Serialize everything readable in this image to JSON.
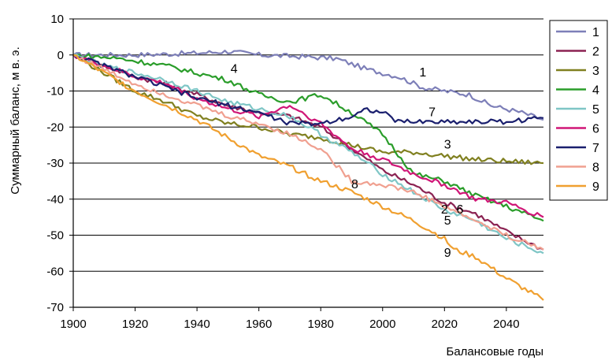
{
  "chart_data": {
    "type": "line",
    "title": "",
    "xlabel": "Балансовые годы",
    "ylabel": "Суммарный баланс,  м в. э.",
    "xlim": [
      1900,
      2052
    ],
    "ylim": [
      -70,
      10
    ],
    "x_ticks": [
      "1900",
      "1920",
      "1940",
      "1960",
      "1980",
      "2000",
      "2020",
      "2040"
    ],
    "y_ticks": [
      "10",
      "0",
      "-10",
      "-20",
      "-30",
      "-40",
      "-50",
      "-60",
      "-70"
    ],
    "grid": "horizontal",
    "legend_position": "right",
    "series": [
      {
        "name": "1",
        "color": "#7d7fb8",
        "points": [
          [
            1900,
            0
          ],
          [
            1920,
            0
          ],
          [
            1940,
            0.5
          ],
          [
            1950,
            1
          ],
          [
            1960,
            0
          ],
          [
            1975,
            -0.5
          ],
          [
            1985,
            -1
          ],
          [
            1995,
            -4
          ],
          [
            2005,
            -6
          ],
          [
            2013,
            -9
          ],
          [
            2020,
            -10
          ],
          [
            2028,
            -11
          ],
          [
            2035,
            -14
          ],
          [
            2045,
            -16
          ],
          [
            2052,
            -18
          ]
        ]
      },
      {
        "name": "2",
        "color": "#8b2252",
        "points": [
          [
            1900,
            0
          ],
          [
            1910,
            -3
          ],
          [
            1920,
            -6
          ],
          [
            1930,
            -8
          ],
          [
            1940,
            -11
          ],
          [
            1950,
            -14
          ],
          [
            1960,
            -16
          ],
          [
            1970,
            -17
          ],
          [
            1980,
            -20
          ],
          [
            1990,
            -26
          ],
          [
            2000,
            -32
          ],
          [
            2010,
            -36
          ],
          [
            2020,
            -41
          ],
          [
            2030,
            -44
          ],
          [
            2040,
            -49
          ],
          [
            2052,
            -54
          ]
        ]
      },
      {
        "name": "3",
        "color": "#808020",
        "points": [
          [
            1900,
            0
          ],
          [
            1910,
            -5
          ],
          [
            1920,
            -10
          ],
          [
            1930,
            -13
          ],
          [
            1940,
            -17
          ],
          [
            1950,
            -19
          ],
          [
            1960,
            -20
          ],
          [
            1970,
            -22
          ],
          [
            1980,
            -23
          ],
          [
            1990,
            -25
          ],
          [
            2000,
            -27
          ],
          [
            2010,
            -27
          ],
          [
            2020,
            -28
          ],
          [
            2030,
            -29
          ],
          [
            2040,
            -29.5
          ],
          [
            2052,
            -30
          ]
        ]
      },
      {
        "name": "4",
        "color": "#2a9d2a",
        "points": [
          [
            1900,
            0
          ],
          [
            1915,
            -1
          ],
          [
            1930,
            -3
          ],
          [
            1940,
            -5
          ],
          [
            1950,
            -7
          ],
          [
            1960,
            -11
          ],
          [
            1970,
            -13
          ],
          [
            1980,
            -11
          ],
          [
            1990,
            -16
          ],
          [
            2000,
            -22
          ],
          [
            2010,
            -33
          ],
          [
            2020,
            -35
          ],
          [
            2030,
            -39
          ],
          [
            2040,
            -42
          ],
          [
            2052,
            -46
          ]
        ]
      },
      {
        "name": "5",
        "color": "#7fc6c6",
        "points": [
          [
            1900,
            0
          ],
          [
            1910,
            -3
          ],
          [
            1920,
            -5
          ],
          [
            1930,
            -7
          ],
          [
            1940,
            -10
          ],
          [
            1950,
            -13
          ],
          [
            1960,
            -15
          ],
          [
            1970,
            -17
          ],
          [
            1980,
            -22
          ],
          [
            1990,
            -27
          ],
          [
            2000,
            -33
          ],
          [
            2010,
            -38
          ],
          [
            2020,
            -43
          ],
          [
            2030,
            -46
          ],
          [
            2040,
            -51
          ],
          [
            2052,
            -55
          ]
        ]
      },
      {
        "name": "6",
        "color": "#d01677",
        "points": [
          [
            1900,
            0
          ],
          [
            1910,
            -3
          ],
          [
            1920,
            -6
          ],
          [
            1930,
            -8
          ],
          [
            1940,
            -12
          ],
          [
            1950,
            -15
          ],
          [
            1960,
            -17
          ],
          [
            1970,
            -14
          ],
          [
            1980,
            -19
          ],
          [
            1990,
            -26
          ],
          [
            2000,
            -29
          ],
          [
            2010,
            -33
          ],
          [
            2020,
            -36
          ],
          [
            2030,
            -40
          ],
          [
            2040,
            -41
          ],
          [
            2052,
            -45
          ]
        ]
      },
      {
        "name": "7",
        "color": "#1a1f6e",
        "points": [
          [
            1900,
            0
          ],
          [
            1910,
            -3
          ],
          [
            1920,
            -6
          ],
          [
            1930,
            -9
          ],
          [
            1940,
            -12
          ],
          [
            1950,
            -14
          ],
          [
            1960,
            -16
          ],
          [
            1970,
            -19
          ],
          [
            1980,
            -19
          ],
          [
            1990,
            -17
          ],
          [
            1995,
            -15
          ],
          [
            2000,
            -16
          ],
          [
            2005,
            -18.5
          ],
          [
            2020,
            -18.5
          ],
          [
            2040,
            -18.5
          ],
          [
            2052,
            -17.5
          ]
        ]
      },
      {
        "name": "8",
        "color": "#f0a090",
        "points": [
          [
            1900,
            0
          ],
          [
            1910,
            -4
          ],
          [
            1920,
            -8
          ],
          [
            1930,
            -11
          ],
          [
            1940,
            -14
          ],
          [
            1950,
            -17
          ],
          [
            1960,
            -19
          ],
          [
            1970,
            -22
          ],
          [
            1980,
            -26
          ],
          [
            1990,
            -35
          ],
          [
            2000,
            -36
          ],
          [
            2010,
            -38
          ],
          [
            2020,
            -42
          ],
          [
            2030,
            -46
          ],
          [
            2040,
            -50
          ],
          [
            2052,
            -54
          ]
        ]
      },
      {
        "name": "9",
        "color": "#f0a030",
        "points": [
          [
            1900,
            0
          ],
          [
            1910,
            -5
          ],
          [
            1920,
            -10
          ],
          [
            1930,
            -14
          ],
          [
            1940,
            -18
          ],
          [
            1950,
            -23
          ],
          [
            1960,
            -28
          ],
          [
            1970,
            -31
          ],
          [
            1980,
            -35
          ],
          [
            1990,
            -38
          ],
          [
            2000,
            -42
          ],
          [
            2010,
            -46
          ],
          [
            2020,
            -51
          ],
          [
            2023,
            -54
          ],
          [
            2030,
            -56
          ],
          [
            2040,
            -62
          ],
          [
            2052,
            -68
          ]
        ]
      }
    ],
    "annotations": [
      {
        "text": "1",
        "x": 2013,
        "y": -6
      },
      {
        "text": "2",
        "x": 2020,
        "y": -44
      },
      {
        "text": "3",
        "x": 2021,
        "y": -26
      },
      {
        "text": "4",
        "x": 1952,
        "y": -5
      },
      {
        "text": "5",
        "x": 2021,
        "y": -47
      },
      {
        "text": "6",
        "x": 2025,
        "y": -44
      },
      {
        "text": "7",
        "x": 2016,
        "y": -17
      },
      {
        "text": "8",
        "x": 1991,
        "y": -37
      },
      {
        "text": "9",
        "x": 2021,
        "y": -56
      }
    ]
  }
}
